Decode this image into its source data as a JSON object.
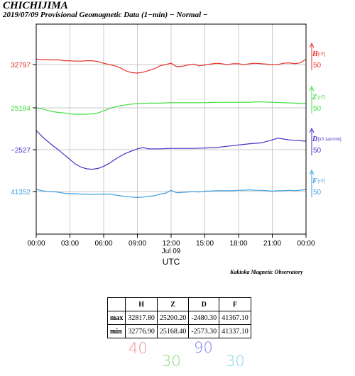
{
  "header": {
    "title": "CHICHIJIMA",
    "subtitle": "2019/07/09  Provisional Geomagnetic Data (1−min)  − Normal −"
  },
  "chart_data": {
    "type": "line",
    "xlabel": "UTC",
    "date_label": "Jul 09",
    "x_tick_labels": [
      "00:00",
      "03:00",
      "06:00",
      "09:00",
      "12:00",
      "15:00",
      "18:00",
      "21:00",
      "00:00"
    ],
    "x_hours": [
      0,
      24
    ],
    "grid": true,
    "series": [
      {
        "name": "H",
        "unit": "[nT]",
        "color": "#e8302a",
        "baseline_label": "32797",
        "scale_label": "50",
        "points": [
          [
            0,
            32810
          ],
          [
            0.5,
            32808
          ],
          [
            1,
            32809
          ],
          [
            1.5,
            32808
          ],
          [
            2,
            32808
          ],
          [
            2.5,
            32806
          ],
          [
            3,
            32806
          ],
          [
            3.5,
            32805
          ],
          [
            4,
            32805
          ],
          [
            4.5,
            32806
          ],
          [
            5,
            32806
          ],
          [
            5.5,
            32804
          ],
          [
            6,
            32800
          ],
          [
            6.5,
            32797
          ],
          [
            7,
            32794
          ],
          [
            7.5,
            32789
          ],
          [
            8,
            32782
          ],
          [
            8.5,
            32778
          ],
          [
            9,
            32777
          ],
          [
            9.5,
            32779
          ],
          [
            10,
            32783
          ],
          [
            10.5,
            32787
          ],
          [
            11,
            32794
          ],
          [
            11.5,
            32797
          ],
          [
            12,
            32800
          ],
          [
            12.5,
            32792
          ],
          [
            13,
            32793
          ],
          [
            13.5,
            32796
          ],
          [
            14,
            32798
          ],
          [
            14.5,
            32794
          ],
          [
            15,
            32796
          ],
          [
            15.5,
            32798
          ],
          [
            16,
            32800
          ],
          [
            16.5,
            32799
          ],
          [
            17,
            32797
          ],
          [
            17.5,
            32799
          ],
          [
            18,
            32799
          ],
          [
            18.5,
            32797
          ],
          [
            19,
            32799
          ],
          [
            19.5,
            32800
          ],
          [
            20,
            32799
          ],
          [
            20.5,
            32798
          ],
          [
            21,
            32797
          ],
          [
            21.5,
            32797
          ],
          [
            22,
            32800
          ],
          [
            22.5,
            32801
          ],
          [
            23,
            32799
          ],
          [
            23.5,
            32801
          ],
          [
            24,
            32810
          ]
        ]
      },
      {
        "name": "Z",
        "unit": "[nT]",
        "color": "#3ee03e",
        "baseline_label": "25184",
        "scale_label": "50",
        "points": [
          [
            0,
            25184
          ],
          [
            0.5,
            25182
          ],
          [
            1,
            25178
          ],
          [
            1.5,
            25175
          ],
          [
            2,
            25173
          ],
          [
            2.5,
            25172
          ],
          [
            3,
            25170
          ],
          [
            3.5,
            25169
          ],
          [
            4,
            25169
          ],
          [
            4.5,
            25169
          ],
          [
            5,
            25170
          ],
          [
            5.5,
            25172
          ],
          [
            6,
            25177
          ],
          [
            6.5,
            25182
          ],
          [
            7,
            25186
          ],
          [
            7.5,
            25189
          ],
          [
            8,
            25191
          ],
          [
            8.5,
            25193
          ],
          [
            9,
            25194
          ],
          [
            9.5,
            25194
          ],
          [
            10,
            25195
          ],
          [
            10.5,
            25195
          ],
          [
            11,
            25195
          ],
          [
            12,
            25196
          ],
          [
            13,
            25196
          ],
          [
            14,
            25196
          ],
          [
            15,
            25196
          ],
          [
            16,
            25197
          ],
          [
            17,
            25197
          ],
          [
            18,
            25197
          ],
          [
            19,
            25197
          ],
          [
            19.5,
            25198
          ],
          [
            20,
            25198
          ],
          [
            21,
            25197
          ],
          [
            22,
            25196
          ],
          [
            23,
            25195
          ],
          [
            24,
            25194
          ]
        ]
      },
      {
        "name": "D",
        "unit": "[x0.1arcmin]",
        "color": "#4b2fc8",
        "baseline_label": "−2527",
        "scale_label": "50",
        "points": [
          [
            0,
            -2482
          ],
          [
            0.3,
            -2490
          ],
          [
            0.6,
            -2498
          ],
          [
            1,
            -2507
          ],
          [
            1.5,
            -2518
          ],
          [
            2,
            -2528
          ],
          [
            2.5,
            -2539
          ],
          [
            3,
            -2550
          ],
          [
            3.5,
            -2561
          ],
          [
            4,
            -2568
          ],
          [
            4.5,
            -2572
          ],
          [
            5,
            -2573
          ],
          [
            5.5,
            -2571
          ],
          [
            6,
            -2566
          ],
          [
            6.5,
            -2559
          ],
          [
            7,
            -2550
          ],
          [
            7.5,
            -2542
          ],
          [
            8,
            -2535
          ],
          [
            8.5,
            -2530
          ],
          [
            9,
            -2525
          ],
          [
            9.5,
            -2522
          ],
          [
            10,
            -2525
          ],
          [
            11,
            -2525
          ],
          [
            12,
            -2524
          ],
          [
            13,
            -2524
          ],
          [
            14,
            -2524
          ],
          [
            15,
            -2523
          ],
          [
            16,
            -2522
          ],
          [
            17,
            -2519
          ],
          [
            18,
            -2516
          ],
          [
            19,
            -2513
          ],
          [
            20,
            -2511
          ],
          [
            21,
            -2504
          ],
          [
            21.5,
            -2500
          ],
          [
            22,
            -2502
          ],
          [
            22.5,
            -2504
          ],
          [
            23,
            -2505
          ],
          [
            23.5,
            -2506
          ],
          [
            24,
            -2507
          ]
        ]
      },
      {
        "name": "F",
        "unit": "[nT]",
        "color": "#3a9ee0",
        "baseline_label": "41352",
        "scale_label": "50",
        "points": [
          [
            0,
            41357
          ],
          [
            0.5,
            41354
          ],
          [
            1,
            41352
          ],
          [
            1.5,
            41352
          ],
          [
            2,
            41350
          ],
          [
            2.5,
            41348
          ],
          [
            3,
            41347
          ],
          [
            3.5,
            41347
          ],
          [
            4,
            41346
          ],
          [
            4.5,
            41346
          ],
          [
            5,
            41345
          ],
          [
            5.5,
            41346
          ],
          [
            6,
            41346
          ],
          [
            6.5,
            41346
          ],
          [
            7,
            41344
          ],
          [
            7.5,
            41342
          ],
          [
            8,
            41340
          ],
          [
            8.5,
            41339
          ],
          [
            9,
            41338
          ],
          [
            9.5,
            41339
          ],
          [
            10,
            41341
          ],
          [
            10.5,
            41342
          ],
          [
            11,
            41346
          ],
          [
            11.5,
            41348
          ],
          [
            12,
            41355
          ],
          [
            12.5,
            41349
          ],
          [
            13,
            41350
          ],
          [
            13.5,
            41351
          ],
          [
            14,
            41352
          ],
          [
            14.5,
            41351
          ],
          [
            15,
            41353
          ],
          [
            15.5,
            41353
          ],
          [
            16,
            41354
          ],
          [
            16.5,
            41354
          ],
          [
            17,
            41354
          ],
          [
            17.5,
            41354
          ],
          [
            18,
            41355
          ],
          [
            18.5,
            41355
          ],
          [
            19,
            41356
          ],
          [
            19.5,
            41355
          ],
          [
            20,
            41355
          ],
          [
            20.5,
            41354
          ],
          [
            21,
            41353
          ],
          [
            21.5,
            41354
          ],
          [
            22,
            41354
          ],
          [
            22.5,
            41355
          ],
          [
            23,
            41354
          ],
          [
            23.5,
            41355
          ],
          [
            24,
            41357
          ]
        ]
      }
    ]
  },
  "credit": "Kakioka Magnetic Observatory",
  "stats_table": {
    "columns": [
      "",
      "H",
      "Z",
      "D",
      "F"
    ],
    "rows": [
      [
        "max",
        "32817.80",
        "25200.20",
        "-2480.30",
        "41367.10"
      ],
      [
        "min",
        "32776.90",
        "25168.40",
        "-2573.30",
        "41337.10"
      ]
    ]
  },
  "handwritten_notes": [
    {
      "text": "40",
      "color": "#f08f8f"
    },
    {
      "text": "30",
      "color": "#8fdc7a"
    },
    {
      "text": "90",
      "color": "#7f80f0"
    },
    {
      "text": "30",
      "color": "#88d6ef"
    }
  ]
}
